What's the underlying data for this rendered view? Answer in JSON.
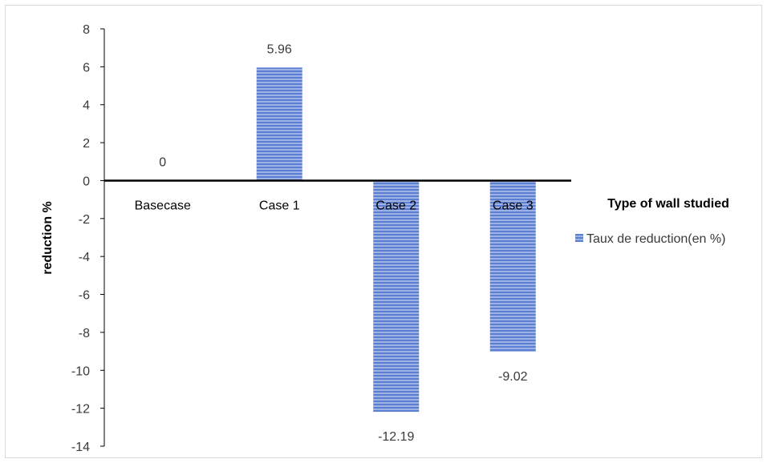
{
  "chart_data": {
    "type": "bar",
    "categories": [
      "Basecase",
      "Case 1",
      "Case 2",
      "Case 3"
    ],
    "series": [
      {
        "name": "Taux de reduction(en %)",
        "values": [
          0,
          5.96,
          -12.19,
          -9.02
        ],
        "data_labels": [
          "0",
          "5.96",
          "-12.19",
          "-9.02"
        ]
      }
    ],
    "ylabel": "reduction %",
    "xlabel": "Type of wall studied",
    "ylim": [
      -14,
      8
    ],
    "yticks": [
      8,
      6,
      4,
      2,
      0,
      -2,
      -4,
      -6,
      -8,
      -10,
      -12,
      -14
    ],
    "bar_color": "#5b7fd3",
    "bar_stripe_color": "#aebfea",
    "legend_position": "right",
    "grid": false
  }
}
